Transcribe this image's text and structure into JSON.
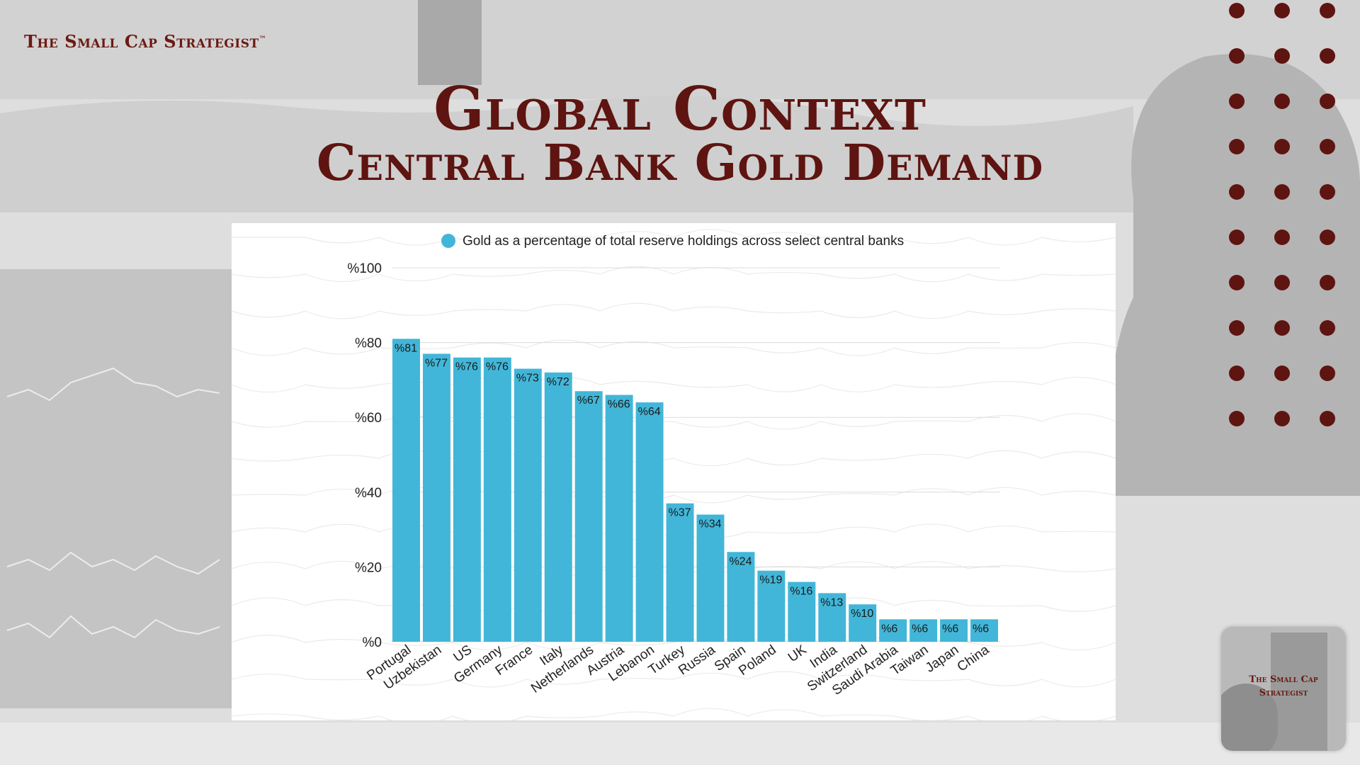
{
  "brand": {
    "name": "The Small Cap Strategist",
    "trademark": "™"
  },
  "title": {
    "line1": "Global Context",
    "line2": "Central Bank Gold Demand"
  },
  "badge": {
    "line1": "The Small Cap",
    "line2": "Strategist"
  },
  "colors": {
    "title": "#5e1410",
    "bar": "#42b6d8",
    "dots": "#5e1410"
  },
  "chart_data": {
    "type": "bar",
    "legend": "Gold as a percentage of total reserve holdings across select central banks",
    "legend_position": "top-center",
    "categories": [
      "Portugal",
      "Uzbekistan",
      "US",
      "Germany",
      "France",
      "Italy",
      "Netherlands",
      "Austria",
      "Lebanon",
      "Turkey",
      "Russia",
      "Spain",
      "Poland",
      "UK",
      "India",
      "Switzerland",
      "Saudi Arabia",
      "Taiwan",
      "Japan",
      "China"
    ],
    "values": [
      81,
      77,
      76,
      76,
      73,
      72,
      67,
      66,
      64,
      37,
      34,
      24,
      19,
      16,
      13,
      10,
      6,
      6,
      6,
      6
    ],
    "value_labels": [
      "%81",
      "%77",
      "%76",
      "%76",
      "%73",
      "%72",
      "%67",
      "%66",
      "%64",
      "%37",
      "%34",
      "%24",
      "%19",
      "%16",
      "%13",
      "%10",
      "%6",
      "%6",
      "%6",
      "%6"
    ],
    "y_ticks": [
      "%0",
      "%20",
      "%40",
      "%60",
      "%80",
      "%100"
    ],
    "ylim": [
      0,
      100
    ],
    "grid": true
  }
}
